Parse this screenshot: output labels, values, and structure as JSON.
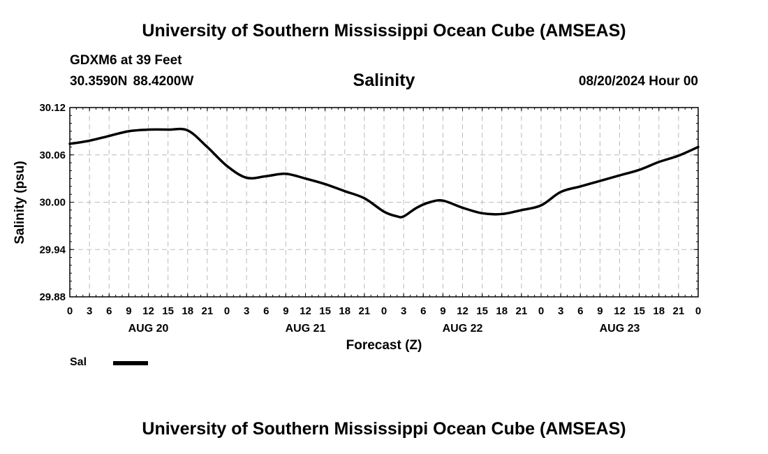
{
  "header": {
    "title": "University of Southern Mississippi Ocean Cube (AMSEAS)",
    "station": "GDXM6 at 39 Feet",
    "coords": "30.3590N  88.4200W",
    "date": "08/20/2024 Hour 00"
  },
  "footer": {
    "title": "University of Southern Mississippi Ocean Cube (AMSEAS)"
  },
  "legend": {
    "label": "Sal"
  },
  "colors": {
    "line": "#000000",
    "grid": "#bbbbbb"
  },
  "chart_data": {
    "type": "line",
    "title": "Salinity",
    "xlabel": "Forecast (Z)",
    "ylabel": "Salinity (psu)",
    "ylim": [
      29.88,
      30.12
    ],
    "xlim": [
      0,
      96
    ],
    "grid": true,
    "yticks": [
      "29.88",
      "29.94",
      "30.00",
      "30.06",
      "30.12"
    ],
    "xtick_labels": [
      "0",
      "3",
      "6",
      "9",
      "12",
      "15",
      "18",
      "21",
      "0",
      "3",
      "6",
      "9",
      "12",
      "15",
      "18",
      "21",
      "0",
      "3",
      "6",
      "9",
      "12",
      "15",
      "18",
      "21",
      "0",
      "3",
      "6",
      "9",
      "12",
      "15",
      "18",
      "21",
      "0"
    ],
    "day_labels": [
      {
        "label": "AUG 20",
        "hour": 12
      },
      {
        "label": "AUG 21",
        "hour": 36
      },
      {
        "label": "AUG 22",
        "hour": 60
      },
      {
        "label": "AUG 23",
        "hour": 84
      }
    ],
    "series": [
      {
        "name": "Sal",
        "x": [
          0,
          3,
          6,
          9,
          12,
          15,
          18,
          21,
          24,
          27,
          30,
          33,
          36,
          39,
          42,
          45,
          48,
          50,
          51,
          53,
          55,
          57,
          60,
          63,
          66,
          69,
          72,
          75,
          78,
          81,
          84,
          87,
          90,
          93,
          96
        ],
        "y": [
          30.074,
          30.078,
          30.084,
          30.09,
          30.092,
          30.092,
          30.091,
          30.07,
          30.046,
          30.031,
          30.033,
          30.036,
          30.03,
          30.023,
          30.014,
          30.005,
          29.988,
          29.982,
          29.982,
          29.993,
          30.0,
          30.002,
          29.993,
          29.986,
          29.985,
          29.99,
          29.996,
          30.013,
          30.02,
          30.027,
          30.034,
          30.041,
          30.051,
          30.059,
          30.07
        ]
      }
    ]
  }
}
